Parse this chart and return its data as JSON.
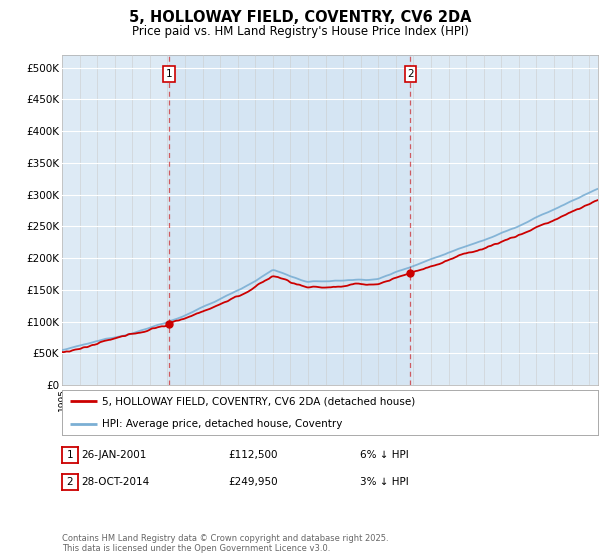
{
  "title": "5, HOLLOWAY FIELD, COVENTRY, CV6 2DA",
  "subtitle": "Price paid vs. HM Land Registry's House Price Index (HPI)",
  "yticks": [
    0,
    50000,
    100000,
    150000,
    200000,
    250000,
    300000,
    350000,
    400000,
    450000,
    500000
  ],
  "ytick_labels": [
    "£0",
    "£50K",
    "£100K",
    "£150K",
    "£200K",
    "£250K",
    "£300K",
    "£350K",
    "£400K",
    "£450K",
    "£500K"
  ],
  "hpi_color": "#7bafd4",
  "price_color": "#cc0000",
  "sale1_year": 2001.07,
  "sale1_price": 112500,
  "sale2_year": 2014.83,
  "sale2_price": 249950,
  "annotation1_label": "1",
  "annotation2_label": "2",
  "legend_line1": "5, HOLLOWAY FIELD, COVENTRY, CV6 2DA (detached house)",
  "legend_line2": "HPI: Average price, detached house, Coventry",
  "table_row1": [
    "1",
    "26-JAN-2001",
    "£112,500",
    "6% ↓ HPI"
  ],
  "table_row2": [
    "2",
    "28-OCT-2014",
    "£249,950",
    "3% ↓ HPI"
  ],
  "footnote": "Contains HM Land Registry data © Crown copyright and database right 2025.\nThis data is licensed under the Open Government Licence v3.0.",
  "plot_bg_color": "#ddeaf5",
  "shade_color": "#ccdcee"
}
